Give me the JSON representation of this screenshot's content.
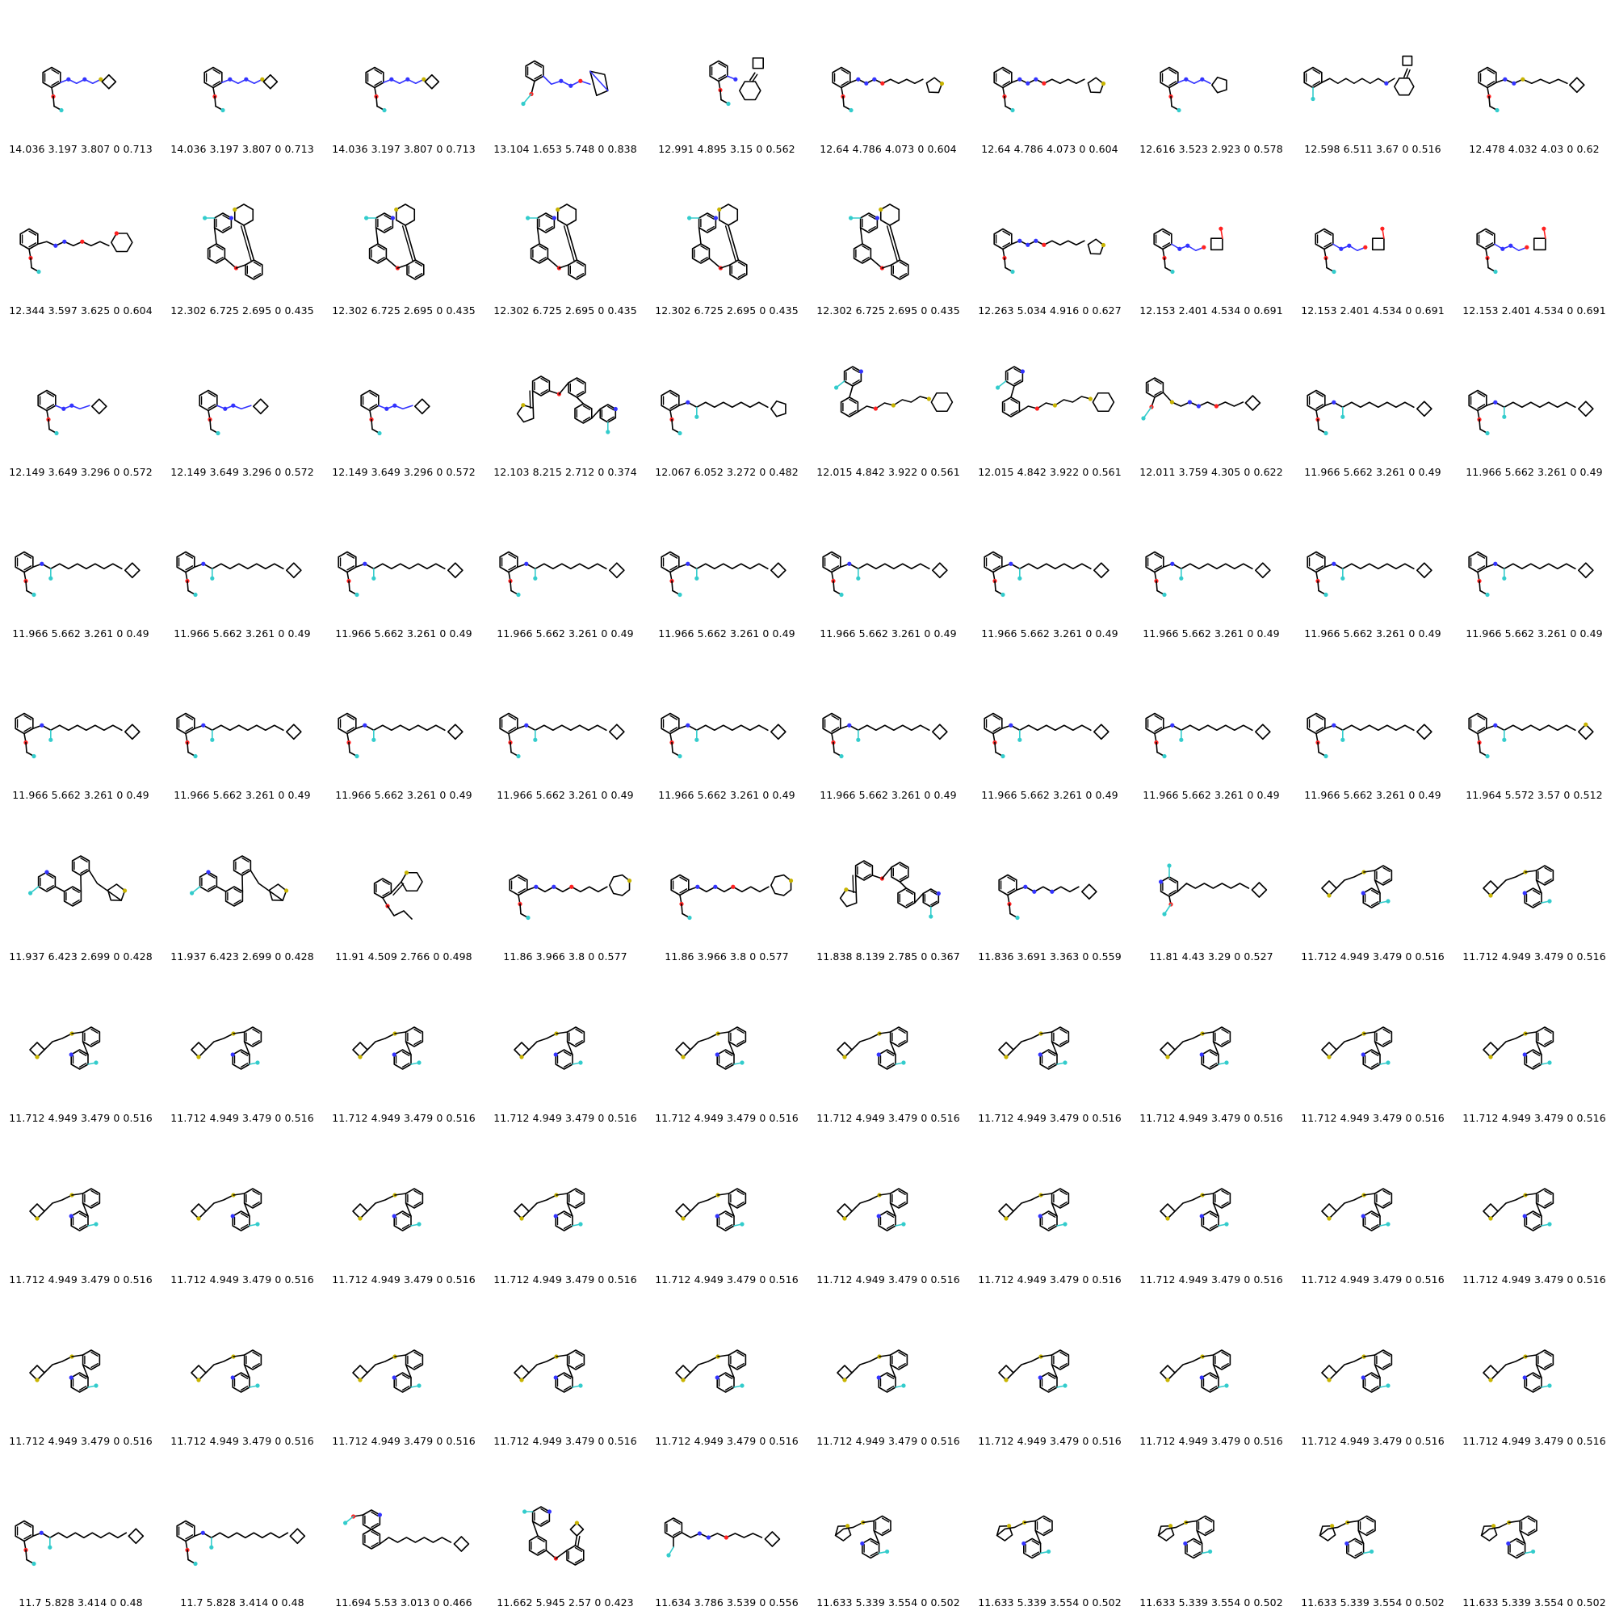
{
  "grid": {
    "columns": 10,
    "rows": 10
  },
  "colors": {
    "carbon": "#000000",
    "nitrogen": "#3333ff",
    "oxygen": "#ff2020",
    "sulfur": "#c8b400",
    "fluorine": "#33cccc"
  },
  "molecules": [
    {
      "label": "14.036 3.197 3.807 0 0.713",
      "icon": "azo-aryl-thietane"
    },
    {
      "label": "14.036 3.197 3.807 0 0.713",
      "icon": "azo-aryl-thietane"
    },
    {
      "label": "14.036 3.197 3.807 0 0.713",
      "icon": "azo-aryl-thietane"
    },
    {
      "label": "13.104 1.653 5.748 0 0.838",
      "icon": "azo-bicyclic"
    },
    {
      "label": "12.991 4.895 3.15 0 0.562",
      "icon": "aryl-cyclohexadiene-cyclobutylidene"
    },
    {
      "label": "12.64 4.786 4.073 0 0.604",
      "icon": "azo-chain-thiolane"
    },
    {
      "label": "12.64 4.786 4.073 0 0.604",
      "icon": "azo-chain-thiolane"
    },
    {
      "label": "12.616 3.523 2.923 0 0.578",
      "icon": "azo-cyclopentyl"
    },
    {
      "label": "12.598 6.511 3.67 0 0.516",
      "icon": "polyene-cyclohexadiene"
    },
    {
      "label": "12.478 4.032 4.03 0 0.62",
      "icon": "azo-sulfur-cyclobutylidene"
    },
    {
      "label": "12.344 3.597 3.625 0 0.604",
      "icon": "azo-oxane"
    },
    {
      "label": "12.302 6.725 2.695 0 0.435",
      "icon": "biaryl-pyridine-thiane"
    },
    {
      "label": "12.302 6.725 2.695 0 0.435",
      "icon": "biaryl-pyridine-thiane"
    },
    {
      "label": "12.302 6.725 2.695 0 0.435",
      "icon": "biaryl-pyridine-thiane"
    },
    {
      "label": "12.302 6.725 2.695 0 0.435",
      "icon": "biaryl-pyridine-thiane"
    },
    {
      "label": "12.302 6.725 2.695 0 0.435",
      "icon": "biaryl-pyridine-thiane"
    },
    {
      "label": "12.263 5.034 4.916 0 0.627",
      "icon": "azo-chain-thiolane"
    },
    {
      "label": "12.153 2.401 4.534 0 0.691",
      "icon": "azo-oxetane-bicyclic"
    },
    {
      "label": "12.153 2.401 4.534 0 0.691",
      "icon": "azo-oxetane-bicyclic"
    },
    {
      "label": "12.153 2.401 4.534 0 0.691",
      "icon": "azo-oxetane-bicyclic"
    },
    {
      "label": "12.149 3.649 3.296 0 0.572",
      "icon": "azo-cyclobutylidene"
    },
    {
      "label": "12.149 3.649 3.296 0 0.572",
      "icon": "azo-cyclobutylidene"
    },
    {
      "label": "12.149 3.649 3.296 0 0.572",
      "icon": "azo-cyclobutylidene"
    },
    {
      "label": "12.103 8.215 2.712 0 0.374",
      "icon": "terphenyl-thiolane"
    },
    {
      "label": "12.067 6.052 3.272 0 0.482",
      "icon": "amine-polyene-cyclopentylidene"
    },
    {
      "label": "12.015 4.842 3.922 0 0.561",
      "icon": "biaryl-chain-thiane"
    },
    {
      "label": "12.015 4.842 3.922 0 0.561",
      "icon": "biaryl-chain-thiane"
    },
    {
      "label": "12.011 3.759 4.305 0 0.622",
      "icon": "sulfur-azo-cyclobutylidene"
    },
    {
      "label": "11.966 5.662 3.261 0 0.49",
      "icon": "amine-polyene-cyclobutylidene"
    },
    {
      "label": "11.966 5.662 3.261 0 0.49",
      "icon": "amine-polyene-cyclobutylidene"
    },
    {
      "label": "11.966 5.662 3.261 0 0.49",
      "icon": "amine-polyene-cyclobutylidene"
    },
    {
      "label": "11.966 5.662 3.261 0 0.49",
      "icon": "amine-polyene-cyclobutylidene"
    },
    {
      "label": "11.966 5.662 3.261 0 0.49",
      "icon": "amine-polyene-cyclobutylidene"
    },
    {
      "label": "11.966 5.662 3.261 0 0.49",
      "icon": "amine-polyene-cyclobutylidene"
    },
    {
      "label": "11.966 5.662 3.261 0 0.49",
      "icon": "amine-polyene-cyclobutylidene"
    },
    {
      "label": "11.966 5.662 3.261 0 0.49",
      "icon": "amine-polyene-cyclobutylidene"
    },
    {
      "label": "11.966 5.662 3.261 0 0.49",
      "icon": "amine-polyene-cyclobutylidene"
    },
    {
      "label": "11.966 5.662 3.261 0 0.49",
      "icon": "amine-polyene-cyclobutylidene"
    },
    {
      "label": "11.966 5.662 3.261 0 0.49",
      "icon": "amine-polyene-cyclobutylidene"
    },
    {
      "label": "11.966 5.662 3.261 0 0.49",
      "icon": "amine-polyene-cyclobutylidene"
    },
    {
      "label": "11.966 5.662 3.261 0 0.49",
      "icon": "amine-polyene-cyclobutylidene"
    },
    {
      "label": "11.966 5.662 3.261 0 0.49",
      "icon": "amine-polyene-cyclobutylidene"
    },
    {
      "label": "11.966 5.662 3.261 0 0.49",
      "icon": "amine-polyene-cyclobutylidene"
    },
    {
      "label": "11.966 5.662 3.261 0 0.49",
      "icon": "amine-polyene-cyclobutylidene"
    },
    {
      "label": "11.966 5.662 3.261 0 0.49",
      "icon": "amine-polyene-cyclobutylidene"
    },
    {
      "label": "11.966 5.662 3.261 0 0.49",
      "icon": "amine-polyene-cyclobutylidene"
    },
    {
      "label": "11.966 5.662 3.261 0 0.49",
      "icon": "amine-polyene-cyclobutylidene"
    },
    {
      "label": "11.966 5.662 3.261 0 0.49",
      "icon": "amine-polyene-cyclobutylidene"
    },
    {
      "label": "11.966 5.662 3.261 0 0.49",
      "icon": "amine-polyene-cyclobutylidene"
    },
    {
      "label": "11.964 5.572 3.57 0 0.512",
      "icon": "amine-polyene-thietane"
    },
    {
      "label": "11.937 6.423 2.699 0 0.428",
      "icon": "terphenyl-pyridine-thiolane"
    },
    {
      "label": "11.937 6.423 2.699 0 0.428",
      "icon": "terphenyl-pyridine-thiolane"
    },
    {
      "label": "11.91 4.509 2.766 0 0.498",
      "icon": "allyl-ether-thiane"
    },
    {
      "label": "11.86 3.966 3.8 0 0.577",
      "icon": "azo-chain-thiepane"
    },
    {
      "label": "11.86 3.966 3.8 0 0.577",
      "icon": "azo-chain-thiepane"
    },
    {
      "label": "11.838 8.139 2.785 0 0.367",
      "icon": "terphenyl-thiolane"
    },
    {
      "label": "11.836 3.691 3.363 0 0.559",
      "icon": "azo-allyl-cyclobutylidene"
    },
    {
      "label": "11.81 4.43 3.29 0 0.527",
      "icon": "pyridine-chain-cyclobutylidene"
    },
    {
      "label": "11.712 4.949 3.479 0 0.516",
      "icon": "thietane-thio-biaryl"
    },
    {
      "label": "11.712 4.949 3.479 0 0.516",
      "icon": "thietane-thio-biaryl"
    },
    {
      "label": "11.712 4.949 3.479 0 0.516",
      "icon": "thietane-thio-biaryl"
    },
    {
      "label": "11.712 4.949 3.479 0 0.516",
      "icon": "thietane-thio-biaryl"
    },
    {
      "label": "11.712 4.949 3.479 0 0.516",
      "icon": "thietane-thio-biaryl"
    },
    {
      "label": "11.712 4.949 3.479 0 0.516",
      "icon": "thietane-thio-biaryl"
    },
    {
      "label": "11.712 4.949 3.479 0 0.516",
      "icon": "thietane-thio-biaryl"
    },
    {
      "label": "11.712 4.949 3.479 0 0.516",
      "icon": "thietane-thio-biaryl"
    },
    {
      "label": "11.712 4.949 3.479 0 0.516",
      "icon": "thietane-thio-biaryl"
    },
    {
      "label": "11.712 4.949 3.479 0 0.516",
      "icon": "thietane-thio-biaryl"
    },
    {
      "label": "11.712 4.949 3.479 0 0.516",
      "icon": "thietane-thio-biaryl"
    },
    {
      "label": "11.712 4.949 3.479 0 0.516",
      "icon": "thietane-thio-biaryl"
    },
    {
      "label": "11.712 4.949 3.479 0 0.516",
      "icon": "thietane-thio-biaryl"
    },
    {
      "label": "11.712 4.949 3.479 0 0.516",
      "icon": "thietane-thio-biaryl"
    },
    {
      "label": "11.712 4.949 3.479 0 0.516",
      "icon": "thietane-thio-biaryl"
    },
    {
      "label": "11.712 4.949 3.479 0 0.516",
      "icon": "thietane-thio-biaryl"
    },
    {
      "label": "11.712 4.949 3.479 0 0.516",
      "icon": "thietane-thio-biaryl"
    },
    {
      "label": "11.712 4.949 3.479 0 0.516",
      "icon": "thietane-thio-biaryl"
    },
    {
      "label": "11.712 4.949 3.479 0 0.516",
      "icon": "thietane-thio-biaryl"
    },
    {
      "label": "11.712 4.949 3.479 0 0.516",
      "icon": "thietane-thio-biaryl"
    },
    {
      "label": "11.712 4.949 3.479 0 0.516",
      "icon": "thietane-thio-biaryl"
    },
    {
      "label": "11.712 4.949 3.479 0 0.516",
      "icon": "thietane-thio-biaryl"
    },
    {
      "label": "11.712 4.949 3.479 0 0.516",
      "icon": "thietane-thio-biaryl"
    },
    {
      "label": "11.712 4.949 3.479 0 0.516",
      "icon": "thietane-thio-biaryl"
    },
    {
      "label": "11.712 4.949 3.479 0 0.516",
      "icon": "thietane-thio-biaryl"
    },
    {
      "label": "11.712 4.949 3.479 0 0.516",
      "icon": "thietane-thio-biaryl"
    },
    {
      "label": "11.712 4.949 3.479 0 0.516",
      "icon": "thietane-thio-biaryl"
    },
    {
      "label": "11.712 4.949 3.479 0 0.516",
      "icon": "thietane-thio-biaryl"
    },
    {
      "label": "11.712 4.949 3.479 0 0.516",
      "icon": "thietane-thio-biaryl"
    },
    {
      "label": "11.712 4.949 3.479 0 0.516",
      "icon": "thietane-thio-biaryl"
    },
    {
      "label": "11.712 4.949 3.479 0 0.516",
      "icon": "thietane-thio-biaryl"
    },
    {
      "label": "11.712 4.949 3.479 0 0.516",
      "icon": "thietane-thio-biaryl"
    },
    {
      "label": "11.7 5.828 3.414 0 0.48",
      "icon": "amine-long-polyene-cyclobutylidene"
    },
    {
      "label": "11.7 5.828 3.414 0 0.48",
      "icon": "amine-long-polyene-cyclobutylidene"
    },
    {
      "label": "11.694 5.53 3.013 0 0.466",
      "icon": "quinoline-chain-cyclobutylidene"
    },
    {
      "label": "11.662 5.945 2.57 0 0.423",
      "icon": "biaryl-pyridine-thietane"
    },
    {
      "label": "11.634 3.786 3.539 0 0.556",
      "icon": "azo-chain-cyclobutylidene"
    },
    {
      "label": "11.633 5.339 3.554 0 0.502",
      "icon": "thiolane-thio-biaryl"
    },
    {
      "label": "11.633 5.339 3.554 0 0.502",
      "icon": "thiolane-thio-biaryl"
    },
    {
      "label": "11.633 5.339 3.554 0 0.502",
      "icon": "thiolane-thio-biaryl"
    },
    {
      "label": "11.633 5.339 3.554 0 0.502",
      "icon": "thiolane-thio-biaryl"
    },
    {
      "label": "11.633 5.339 3.554 0 0.502",
      "icon": "thiolane-thio-biaryl"
    }
  ]
}
